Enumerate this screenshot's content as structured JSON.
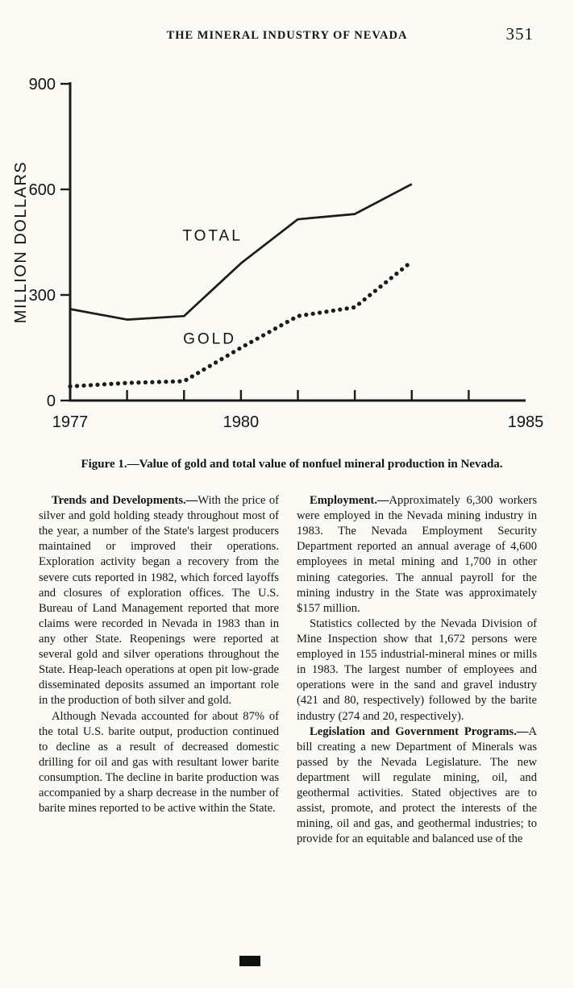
{
  "page": {
    "header": {
      "title": "THE MINERAL INDUSTRY OF NEVADA",
      "page_number": "351"
    }
  },
  "figure": {
    "caption": "Figure 1.—Value of gold and total value of nonfuel mineral production in Nevada."
  },
  "chart_data": {
    "type": "line",
    "title": "",
    "xlabel": "",
    "ylabel": "MILLION DOLLARS",
    "xlim": [
      1977,
      1985
    ],
    "ylim": [
      0,
      900
    ],
    "x_ticks": [
      1977,
      1978,
      1979,
      1980,
      1981,
      1982,
      1983,
      1984,
      1985
    ],
    "x_tick_labels": [
      "1977",
      "1980",
      "1985"
    ],
    "x_tick_label_positions": [
      1977,
      1980,
      1985
    ],
    "y_ticks": [
      0,
      300,
      600,
      900
    ],
    "grid": false,
    "legend_position": "inline-labels",
    "line_color": "#1c1c1c",
    "series": [
      {
        "name": "TOTAL",
        "style": "solid",
        "x": [
          1977,
          1978,
          1979,
          1980,
          1981,
          1982,
          1983
        ],
        "values": [
          260,
          230,
          240,
          390,
          515,
          530,
          615
        ],
        "label": {
          "x": 1979.5,
          "y": 455
        }
      },
      {
        "name": "GOLD",
        "style": "dotted",
        "x": [
          1977,
          1978,
          1979,
          1980,
          1981,
          1982,
          1983
        ],
        "values": [
          40,
          50,
          55,
          150,
          240,
          265,
          395
        ],
        "label": {
          "x": 1979.45,
          "y": 162
        }
      }
    ]
  },
  "article": {
    "left": [
      {
        "lead": "Trends and Developments.—",
        "text": "With the price of silver and gold holding steady throughout most of the year, a number of the State's largest producers maintained or improved their operations. Exploration activity began a recovery from the severe cuts reported in 1982, which forced layoffs and closures of exploration offices. The U.S. Bureau of Land Management reported that more claims were recorded in Nevada in 1983 than in any other State. Reopenings were reported at several gold and silver operations throughout the State. Heap-leach operations at open pit low-grade disseminated deposits assumed an important role in the production of both silver and gold."
      },
      {
        "lead": "",
        "text": "Although Nevada accounted for about 87% of the total U.S. barite output, production continued to decline as a result of decreased domestic drilling for oil and gas with resultant lower barite consumption. The decline in barite production was accompanied by a sharp decrease in the number of barite mines reported to be active within the State."
      }
    ],
    "right": [
      {
        "lead": "Employment.—",
        "text": "Approximately 6,300 workers were employed in the Nevada mining industry in 1983. The Nevada Employment Security Department reported an annual average of 4,600 employees in metal mining and 1,700 in other mining categories. The annual payroll for the mining industry in the State was approximately $157 million."
      },
      {
        "lead": "",
        "text": "Statistics collected by the Nevada Division of Mine Inspection show that 1,672 persons were employed in 155 industrial-mineral mines or mills in 1983. The largest number of employees and operations were in the sand and gravel industry (421 and 80, respectively) followed by the barite industry (274 and 20, respectively)."
      },
      {
        "lead": "Legislation and Government Programs.—",
        "text": "A bill creating a new Department of Minerals was passed by the Nevada Legislature. The new department will regulate mining, oil, and geothermal activities. Stated objectives are to assist, promote, and protect the interests of the mining, oil and gas, and geothermal industries; to provide for an equitable and balanced use of the"
      }
    ]
  }
}
